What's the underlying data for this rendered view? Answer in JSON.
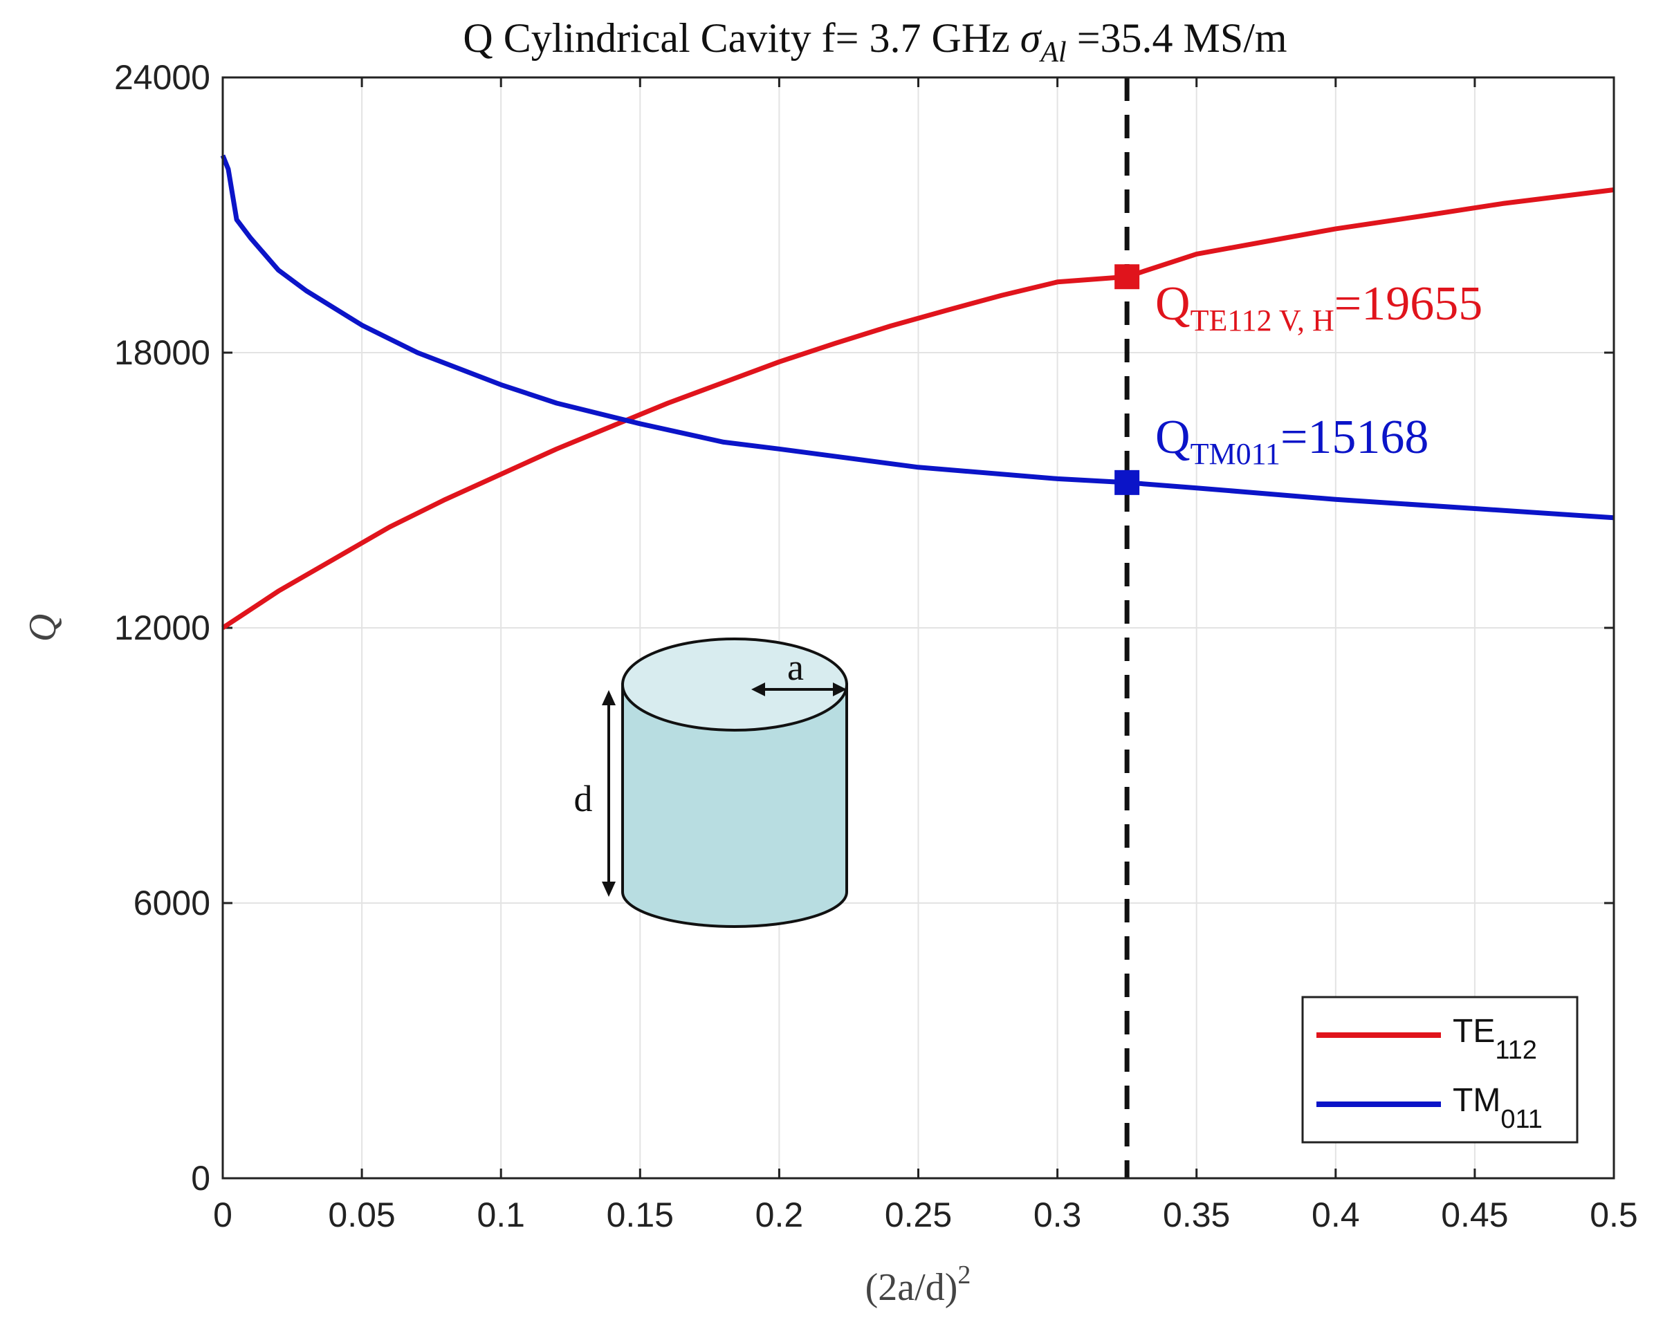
{
  "chart_data": {
    "type": "line",
    "title": {
      "main": "Q Cylindrical Cavity f= 3.7 GHz ",
      "sigma": "σ",
      "sigma_sub": "Al",
      "rest": " =35.4 MS/m"
    },
    "xlabel": {
      "base": "(2a/d)",
      "sup": "2"
    },
    "ylabel": "Q",
    "xlim": [
      0,
      0.5
    ],
    "ylim": [
      0,
      24000
    ],
    "xticks": [
      0,
      0.05,
      0.1,
      0.15,
      0.2,
      0.25,
      0.3,
      0.35,
      0.4,
      0.45,
      0.5
    ],
    "xtick_labels": [
      "0",
      "0.05",
      "0.1",
      "0.15",
      "0.2",
      "0.25",
      "0.3",
      "0.35",
      "0.4",
      "0.45",
      "0.5"
    ],
    "yticks": [
      0,
      6000,
      12000,
      18000,
      24000
    ],
    "ytick_labels": [
      "0",
      "6000",
      "12000",
      "18000",
      "24000"
    ],
    "grid": true,
    "series": [
      {
        "name": "TE112",
        "legend": {
          "base": "TE",
          "sub": "112"
        },
        "color": "#e0141c",
        "x": [
          0,
          0.01,
          0.02,
          0.04,
          0.06,
          0.08,
          0.1,
          0.12,
          0.14,
          0.15,
          0.16,
          0.18,
          0.2,
          0.22,
          0.24,
          0.26,
          0.28,
          0.3,
          0.325,
          0.35,
          0.38,
          0.4,
          0.43,
          0.46,
          0.5
        ],
        "values": [
          12000,
          12400,
          12800,
          13500,
          14200,
          14800,
          15350,
          15900,
          16400,
          16650,
          16900,
          17350,
          17800,
          18200,
          18580,
          18920,
          19250,
          19540,
          19655,
          20150,
          20480,
          20700,
          20970,
          21250,
          21550
        ]
      },
      {
        "name": "TM011",
        "legend": {
          "base": "TM",
          "sub": "011"
        },
        "color": "#0b14c8",
        "x": [
          0,
          0.002,
          0.005,
          0.01,
          0.02,
          0.03,
          0.05,
          0.07,
          0.1,
          0.12,
          0.15,
          0.18,
          0.2,
          0.25,
          0.3,
          0.325,
          0.35,
          0.4,
          0.45,
          0.5
        ],
        "values": [
          22300,
          22000,
          20900,
          20500,
          19800,
          19350,
          18600,
          18000,
          17300,
          16900,
          16450,
          16050,
          15900,
          15500,
          15250,
          15168,
          15050,
          14800,
          14600,
          14400
        ]
      }
    ],
    "vline": {
      "x": 0.325,
      "color": "#111111"
    },
    "annotations": [
      {
        "x": 0.325,
        "y": 19655,
        "color": "#e0141c",
        "q": "Q",
        "sub": "TE112 V, H",
        "text": "=19655"
      },
      {
        "x": 0.325,
        "y": 15168,
        "color": "#0b14c8",
        "q": "Q",
        "sub": "TM011",
        "text": "=15168"
      }
    ],
    "legend_position": "bottom-right",
    "inset": {
      "label_a": "a",
      "label_d": "d",
      "fill": "#b8dde1",
      "top_fill": "#d8ecef"
    }
  }
}
